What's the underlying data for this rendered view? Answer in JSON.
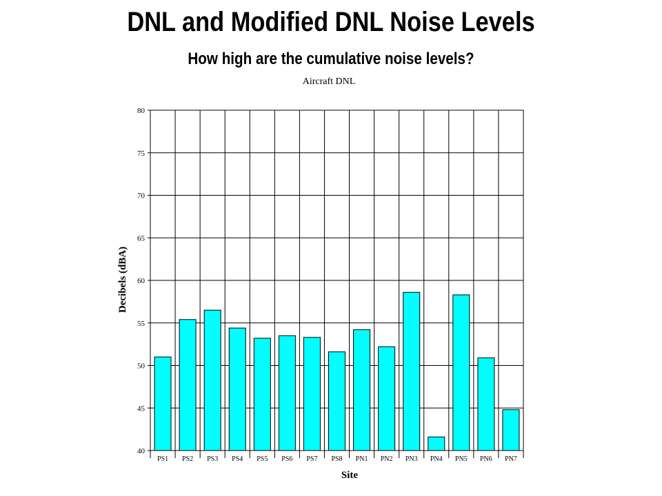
{
  "slide": {
    "title": "DNL and Modified DNL Noise Levels",
    "subtitle": "How high are the cumulative noise levels?"
  },
  "chart_data": {
    "type": "bar",
    "title": "Aircraft DNL",
    "xlabel": "Site",
    "ylabel": "Decibels (dBA)",
    "ylim": [
      40,
      80
    ],
    "yticks": [
      40,
      45,
      50,
      55,
      60,
      65,
      70,
      75,
      80
    ],
    "grid": true,
    "bar_color": "#00ffff",
    "categories": [
      "PS1",
      "PS2",
      "PS3",
      "PS4",
      "PS5",
      "PS6",
      "PS7",
      "PS8",
      "PN1",
      "PN2",
      "PN3",
      "PN4",
      "PN5",
      "PN6",
      "PN7"
    ],
    "values": [
      51.0,
      55.4,
      56.5,
      54.4,
      53.2,
      53.5,
      53.3,
      51.6,
      54.2,
      52.2,
      58.6,
      41.6,
      58.3,
      50.9,
      44.8
    ]
  }
}
